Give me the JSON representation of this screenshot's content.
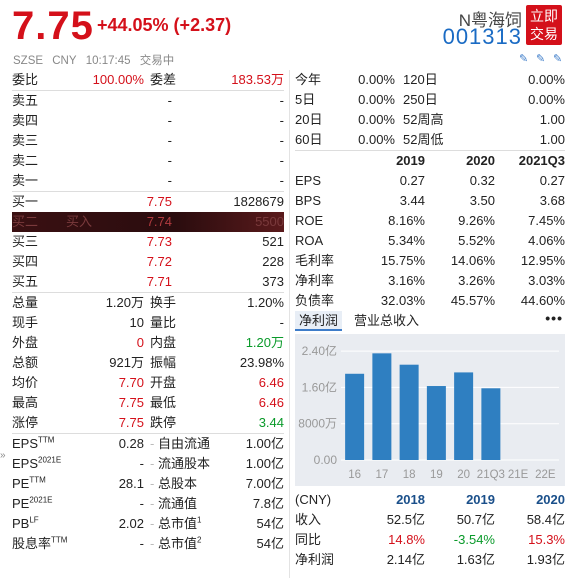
{
  "header": {
    "price": "7.75",
    "change": "+44.05% (+2.37)",
    "exchange": "SZSE",
    "currency": "CNY",
    "time": "10:17:45",
    "status": "交易中",
    "stock_name": "N粤海饲",
    "stock_code": "001313",
    "trade_button_line1": "立即",
    "trade_button_line2": "交易"
  },
  "left": {
    "ratio": {
      "k1": "委比",
      "v1": "100.00%",
      "k2": "委差",
      "v2": "183.53万"
    },
    "asks": [
      {
        "label": "卖五",
        "price": "-",
        "vol": "-"
      },
      {
        "label": "卖四",
        "price": "-",
        "vol": "-"
      },
      {
        "label": "卖三",
        "price": "-",
        "vol": "-"
      },
      {
        "label": "卖二",
        "price": "-",
        "vol": "-"
      },
      {
        "label": "卖一",
        "price": "-",
        "vol": "-"
      }
    ],
    "bids": [
      {
        "label": "买一",
        "price": "7.75",
        "vol": "1828679"
      },
      {
        "label": "买二",
        "price": "7.74",
        "vol": "5500",
        "tag": "买入"
      },
      {
        "label": "买三",
        "price": "7.73",
        "vol": "521"
      },
      {
        "label": "买四",
        "price": "7.72",
        "vol": "228"
      },
      {
        "label": "买五",
        "price": "7.71",
        "vol": "373"
      }
    ],
    "stats": [
      {
        "k1": "总量",
        "v1": "1.20万",
        "k2": "换手",
        "v2": "1.20%"
      },
      {
        "k1": "现手",
        "v1": "10",
        "k2": "量比",
        "v2": "-"
      },
      {
        "k1": "外盘",
        "v1": "0",
        "k2": "内盘",
        "v2": "1.20万"
      },
      {
        "k1": "总额",
        "v1": "921万",
        "k2": "振幅",
        "v2": "23.98%"
      },
      {
        "k1": "均价",
        "v1": "7.70",
        "k2": "开盘",
        "v2": "6.46"
      },
      {
        "k1": "最高",
        "v1": "7.75",
        "k2": "最低",
        "v2": "6.46"
      },
      {
        "k1": "涨停",
        "v1": "7.75",
        "k2": "跌停",
        "v2": "3.44"
      }
    ],
    "fin": [
      {
        "k1": "EPS",
        "k1sup": "TTM",
        "v1": "0.28",
        "k2": "自由流通",
        "v2": "1.00亿"
      },
      {
        "k1": "EPS",
        "k1sup": "2021E",
        "v1": "-",
        "k2": "流通股本",
        "v2": "1.00亿"
      },
      {
        "k1": "PE",
        "k1sup": "TTM",
        "v1": "28.1",
        "k2": "总股本",
        "v2": "7.00亿"
      },
      {
        "k1": "PE",
        "k1sup": "2021E",
        "v1": "-",
        "k2": "流通值",
        "v2": "7.8亿"
      },
      {
        "k1": "PB",
        "k1sup": "LF",
        "v1": "2.02",
        "k2": "总市值",
        "k2sup": "1",
        "v2": "54亿"
      },
      {
        "k1": "股息率",
        "k1sup": "TTM",
        "v1": "-",
        "k2": "总市值",
        "k2sup": "2",
        "v2": "54亿"
      }
    ]
  },
  "right": {
    "perf": [
      {
        "a": "今年",
        "b": "0.00%",
        "c": "120日",
        "d": "0.00%"
      },
      {
        "a": "5日",
        "b": "0.00%",
        "c": "250日",
        "d": "0.00%"
      },
      {
        "a": "20日",
        "b": "0.00%",
        "c": "52周高",
        "d": "1.00"
      },
      {
        "a": "60日",
        "b": "0.00%",
        "c": "52周低",
        "d": "1.00"
      }
    ],
    "fy_header": [
      "",
      "2019",
      "2020",
      "2021Q3"
    ],
    "fy_rows": [
      {
        "lab": "EPS",
        "v": [
          "0.27",
          "0.32",
          "0.27"
        ]
      },
      {
        "lab": "BPS",
        "v": [
          "3.44",
          "3.50",
          "3.68"
        ]
      },
      {
        "lab": "ROE",
        "v": [
          "8.16%",
          "9.26%",
          "7.45%"
        ]
      },
      {
        "lab": "ROA",
        "v": [
          "5.34%",
          "5.52%",
          "4.06%"
        ]
      },
      {
        "lab": "毛利率",
        "v": [
          "15.75%",
          "14.06%",
          "12.95%"
        ]
      },
      {
        "lab": "净利率",
        "v": [
          "3.16%",
          "3.26%",
          "3.03%"
        ]
      },
      {
        "lab": "负债率",
        "v": [
          "32.03%",
          "45.57%",
          "44.60%"
        ]
      }
    ],
    "tabs": [
      "净利润",
      "营业总收入"
    ],
    "more": "•••",
    "income_header": [
      "(CNY)",
      "2018",
      "2019",
      "2020"
    ],
    "income_rows": [
      {
        "lab": "收入",
        "v": [
          "52.5亿",
          "50.7亿",
          "58.4亿"
        ],
        "cls": [
          "dark",
          "dark",
          "dark"
        ]
      },
      {
        "lab": "同比",
        "v": [
          "14.8%",
          "-3.54%",
          "15.3%"
        ],
        "cls": [
          "red",
          "green",
          "red"
        ]
      },
      {
        "lab": "净利润",
        "v": [
          "2.14亿",
          "1.63亿",
          "1.93亿"
        ],
        "cls": [
          "dark",
          "dark",
          "dark"
        ]
      }
    ]
  },
  "chart_data": {
    "type": "bar",
    "categories": [
      "16",
      "17",
      "18",
      "19",
      "20",
      "21Q3",
      "21E",
      "22E"
    ],
    "values": [
      1.9,
      2.35,
      2.1,
      1.63,
      1.93,
      1.58,
      null,
      null
    ],
    "ytick_labels": [
      "2.40亿",
      "1.60亿",
      "8000万",
      "0.00"
    ],
    "ytick_values": [
      2.4,
      1.6,
      0.8,
      0
    ],
    "ylim": [
      0,
      2.6
    ],
    "bar_color": "#2f7fc1",
    "grid": true
  }
}
